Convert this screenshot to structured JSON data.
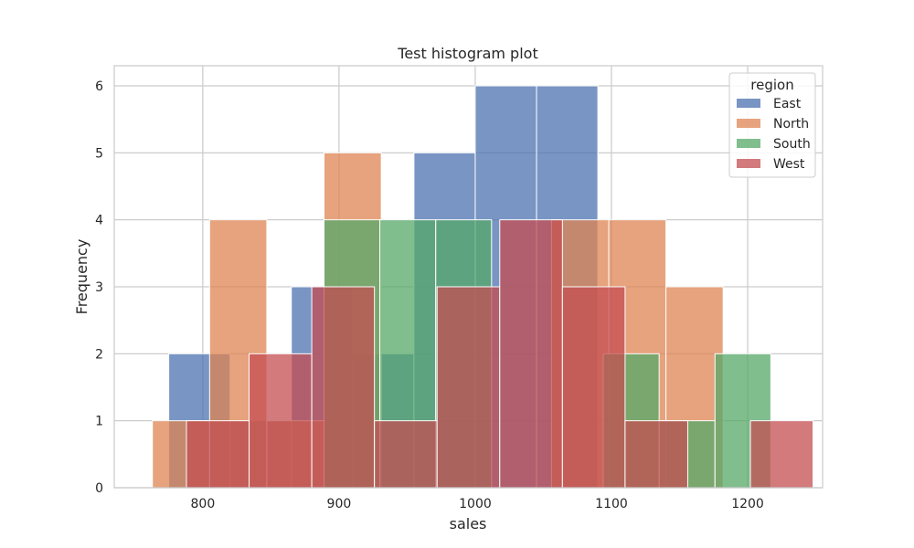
{
  "chart_data": {
    "type": "bar",
    "subtype": "histogram",
    "title": "Test histogram plot",
    "xlabel": "sales",
    "ylabel": "Frequency",
    "xlim": [
      735,
      1255
    ],
    "ylim": [
      0,
      6.3
    ],
    "xticks": [
      800,
      900,
      1000,
      1100,
      1200
    ],
    "yticks": [
      0,
      1,
      2,
      3,
      4,
      5,
      6
    ],
    "grid": true,
    "legend": {
      "title": "region",
      "placement": "top-right"
    },
    "series": [
      {
        "name": "East",
        "color": "#4c72b0",
        "bins": [
          {
            "x0": 775,
            "x1": 820,
            "count": 2
          },
          {
            "x0": 820,
            "x1": 865,
            "count": 1
          },
          {
            "x0": 865,
            "x1": 910,
            "count": 3
          },
          {
            "x0": 910,
            "x1": 955,
            "count": 2
          },
          {
            "x0": 955,
            "x1": 1000,
            "count": 5
          },
          {
            "x0": 1000,
            "x1": 1045,
            "count": 6
          },
          {
            "x0": 1045,
            "x1": 1090,
            "count": 6
          }
        ]
      },
      {
        "name": "North",
        "color": "#dd8452",
        "bins": [
          {
            "x0": 763,
            "x1": 805,
            "count": 1
          },
          {
            "x0": 805,
            "x1": 847,
            "count": 4
          },
          {
            "x0": 847,
            "x1": 889,
            "count": 1
          },
          {
            "x0": 889,
            "x1": 931,
            "count": 5
          },
          {
            "x0": 1056,
            "x1": 1098,
            "count": 4
          },
          {
            "x0": 1098,
            "x1": 1140,
            "count": 4
          },
          {
            "x0": 1140,
            "x1": 1182,
            "count": 3
          }
        ]
      },
      {
        "name": "South",
        "color": "#55a868",
        "bins": [
          {
            "x0": 889,
            "x1": 930,
            "count": 4
          },
          {
            "x0": 930,
            "x1": 971,
            "count": 4
          },
          {
            "x0": 971,
            "x1": 1012,
            "count": 4
          },
          {
            "x0": 1012,
            "x1": 1053,
            "count": 0
          },
          {
            "x0": 1053,
            "x1": 1094,
            "count": 0
          },
          {
            "x0": 1094,
            "x1": 1135,
            "count": 2
          },
          {
            "x0": 1135,
            "x1": 1176,
            "count": 1
          },
          {
            "x0": 1176,
            "x1": 1217,
            "count": 2
          }
        ]
      },
      {
        "name": "West",
        "color": "#c44e52",
        "bins": [
          {
            "x0": 788,
            "x1": 834,
            "count": 1
          },
          {
            "x0": 834,
            "x1": 880,
            "count": 2
          },
          {
            "x0": 880,
            "x1": 926,
            "count": 3
          },
          {
            "x0": 926,
            "x1": 972,
            "count": 1
          },
          {
            "x0": 972,
            "x1": 1018,
            "count": 3
          },
          {
            "x0": 1018,
            "x1": 1064,
            "count": 4
          },
          {
            "x0": 1064,
            "x1": 1110,
            "count": 3
          },
          {
            "x0": 1110,
            "x1": 1156,
            "count": 1
          },
          {
            "x0": 1156,
            "x1": 1202,
            "count": 0
          },
          {
            "x0": 1202,
            "x1": 1248,
            "count": 1
          }
        ]
      }
    ]
  }
}
